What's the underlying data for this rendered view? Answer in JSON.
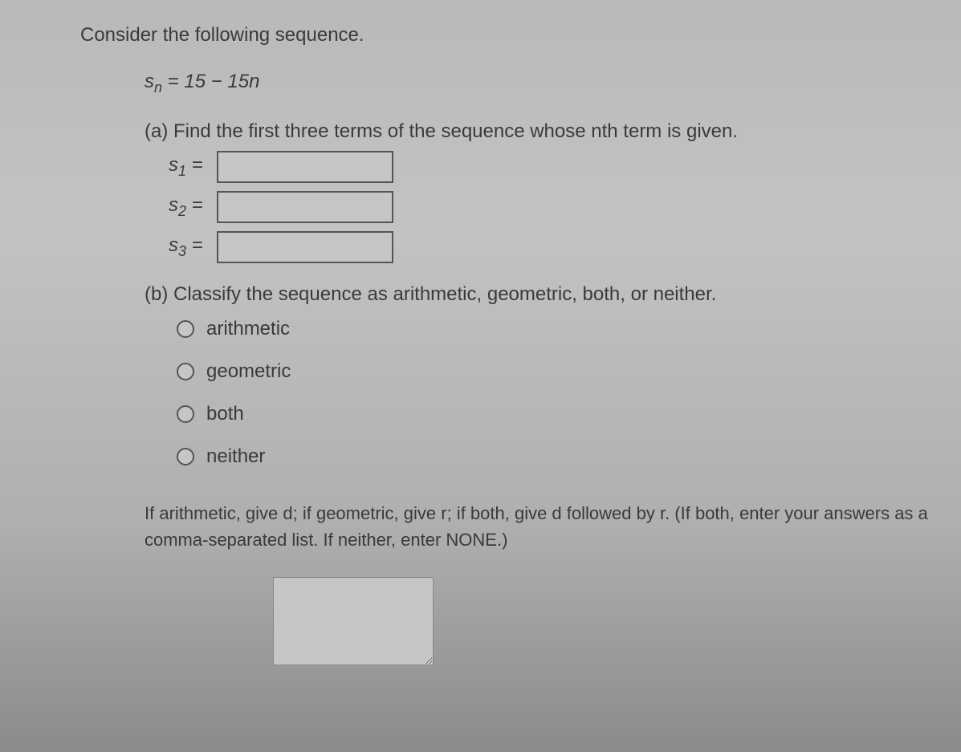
{
  "intro": "Consider the following sequence.",
  "formula": {
    "var": "s",
    "sub": "n",
    "eq": " = 15 − 15n"
  },
  "partA": {
    "label": "(a) Find the first three terms of the sequence whose nth term is given.",
    "terms": [
      {
        "var": "s",
        "sub": "1",
        "eq": " =",
        "value": ""
      },
      {
        "var": "s",
        "sub": "2",
        "eq": " =",
        "value": ""
      },
      {
        "var": "s",
        "sub": "3",
        "eq": " =",
        "value": ""
      }
    ]
  },
  "partB": {
    "label": "(b) Classify the sequence as arithmetic, geometric, both, or neither.",
    "options": [
      {
        "label": "arithmetic"
      },
      {
        "label": "geometric"
      },
      {
        "label": "both"
      },
      {
        "label": "neither"
      }
    ]
  },
  "instruction": "If arithmetic, give d; if geometric, give r; if both, give d followed by r. (If both, enter your answers as a comma-separated list. If neither, enter NONE.)",
  "answer_value": ""
}
